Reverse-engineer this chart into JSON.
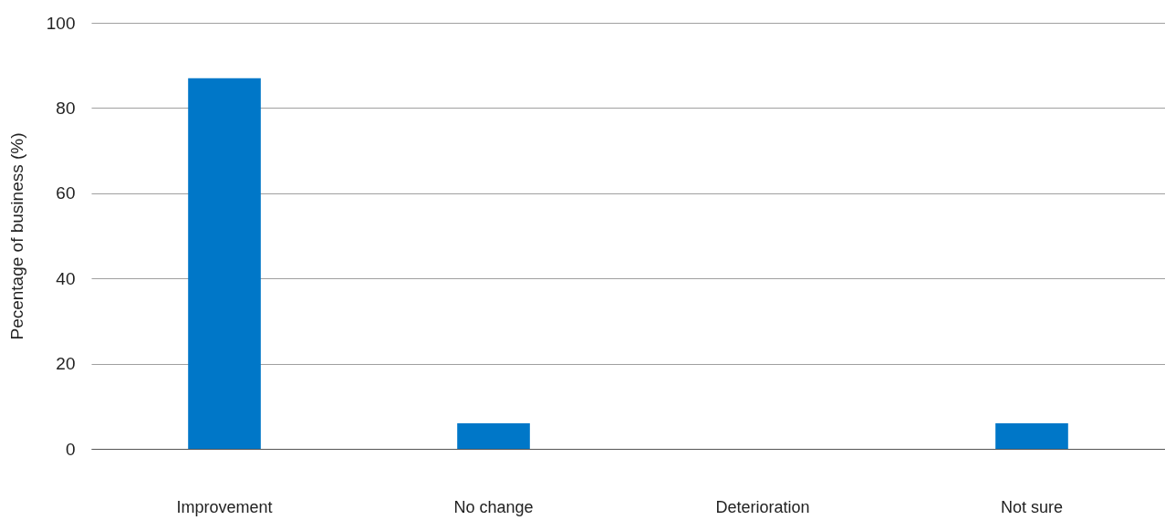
{
  "chart_data": {
    "type": "bar",
    "ylabel": "Pecentage of business (%)",
    "categories": [
      "Improvement",
      "No change",
      "Deterioration",
      "Not sure"
    ],
    "values": [
      87,
      6,
      0,
      6
    ],
    "color": "#0077c8",
    "ylim": [
      0,
      100
    ],
    "yticks": [
      0,
      20,
      40,
      60,
      80,
      100
    ],
    "grid": "y"
  }
}
